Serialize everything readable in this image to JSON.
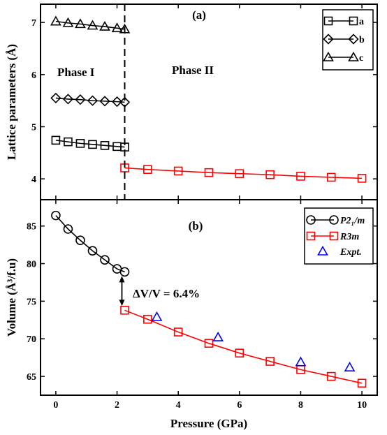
{
  "chart_data": [
    {
      "type": "line",
      "panel_label": "(a)",
      "xlim": [
        -0.5,
        10.5
      ],
      "ylim": [
        3.6,
        7.35
      ],
      "yticks": [
        4,
        5,
        6,
        7
      ],
      "ylabel": "Lattice parameters (Å)",
      "phase_labels": [
        "Phase I",
        "Phase II"
      ],
      "phase_boundary_x": 2.25,
      "legend": {
        "position": "top-right",
        "entries": [
          "a",
          "b",
          "c"
        ]
      },
      "series": [
        {
          "name": "a",
          "marker": "square",
          "color": "#000000",
          "x": [
            0,
            0.4,
            0.8,
            1.2,
            1.6,
            2.0,
            2.25
          ],
          "y": [
            4.74,
            4.71,
            4.68,
            4.66,
            4.64,
            4.62,
            4.61
          ]
        },
        {
          "name": "b",
          "marker": "diamond",
          "color": "#000000",
          "x": [
            0,
            0.4,
            0.8,
            1.2,
            1.6,
            2.0,
            2.25
          ],
          "y": [
            5.55,
            5.53,
            5.52,
            5.5,
            5.49,
            5.48,
            5.47
          ]
        },
        {
          "name": "c",
          "marker": "triangle",
          "color": "#000000",
          "x": [
            0,
            0.4,
            0.8,
            1.2,
            1.6,
            2.0,
            2.25
          ],
          "y": [
            7.02,
            6.99,
            6.97,
            6.94,
            6.92,
            6.89,
            6.87
          ]
        },
        {
          "name": "",
          "marker": "square",
          "color": "#ff0000",
          "x": [
            2.25,
            3,
            4,
            5,
            6,
            7,
            8,
            9,
            10
          ],
          "y": [
            4.21,
            4.18,
            4.15,
            4.12,
            4.1,
            4.08,
            4.05,
            4.03,
            4.01
          ]
        }
      ]
    },
    {
      "type": "line",
      "panel_label": "(b)",
      "xlim": [
        -0.5,
        10.5
      ],
      "ylim": [
        62.5,
        88.5
      ],
      "xticks": [
        0,
        2,
        4,
        6,
        8,
        10
      ],
      "yticks": [
        65,
        70,
        75,
        80,
        85
      ],
      "xlabel": "Pressure (GPa)",
      "ylabel": "Volume (Å³/f.u)",
      "annotation": "ΔV/V = 6.4%",
      "arrow": {
        "x": 2.25,
        "from": 78.9,
        "to": 73.8
      },
      "legend": {
        "position": "top-right",
        "entries": [
          "P2₁/m",
          "R3m",
          "Expt."
        ]
      },
      "series": [
        {
          "name": "P2₁/m",
          "marker": "circle",
          "color": "#000000",
          "x": [
            0,
            0.4,
            0.8,
            1.2,
            1.6,
            2.0,
            2.25
          ],
          "y": [
            86.4,
            84.6,
            83.1,
            81.7,
            80.5,
            79.3,
            78.9
          ]
        },
        {
          "name": "R3m",
          "marker": "square",
          "color": "#ff0000",
          "x": [
            2.25,
            3,
            4,
            5,
            6,
            7,
            8,
            9,
            10
          ],
          "y": [
            73.8,
            72.6,
            70.9,
            69.4,
            68.1,
            67.0,
            65.9,
            65.0,
            64.1
          ]
        },
        {
          "name": "Expt.",
          "marker": "triangle",
          "color": "#0000ff",
          "line": false,
          "x": [
            3.3,
            5.3,
            8.0,
            9.6
          ],
          "y": [
            72.9,
            70.2,
            66.9,
            66.2
          ]
        }
      ]
    }
  ]
}
